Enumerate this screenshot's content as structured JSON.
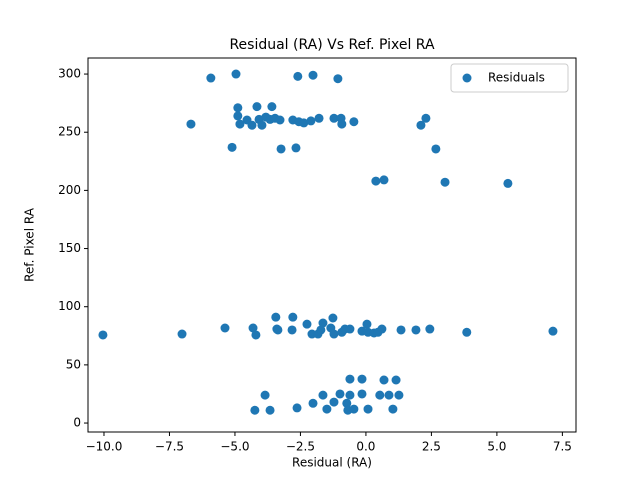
{
  "chart_data": {
    "type": "scatter",
    "title": "Residual (RA) Vs Ref. Pixel RA",
    "x_label": "Residual (RA)",
    "y_label": "Ref. Pixel RA",
    "x": [
      -5.92,
      -4.96,
      -2.6,
      -2.02,
      -1.07,
      -6.68,
      -4.89,
      -4.16,
      -3.59,
      -4.89,
      -4.54,
      -4.81,
      -4.35,
      -4.08,
      -3.97,
      -3.82,
      -3.66,
      -3.47,
      -3.28,
      -2.79,
      -2.56,
      -2.37,
      -2.1,
      -1.79,
      -1.22,
      -0.95,
      -0.92,
      -0.46,
      -5.11,
      -3.24,
      -2.67,
      2.1,
      2.29,
      2.67,
      0.38,
      0.69,
      3.02,
      5.42,
      -10.04,
      -7.02,
      -5.38,
      -4.31,
      -4.2,
      -3.44,
      -3.4,
      -3.36,
      -2.82,
      -2.79,
      -2.25,
      -2.06,
      -1.83,
      -1.72,
      -1.64,
      -1.34,
      -1.26,
      -1.22,
      -0.92,
      -0.8,
      -0.61,
      -0.15,
      0.04,
      0.08,
      0.31,
      0.46,
      0.61,
      1.34,
      1.91,
      2.44,
      3.85,
      7.14,
      -0.61,
      -0.15,
      0.69,
      1.15,
      -3.85,
      -1.64,
      -0.99,
      -0.61,
      -0.15,
      0.53,
      0.88,
      1.26,
      -1.22,
      -2.02,
      -0.73,
      -4.24,
      -3.66,
      -2.63,
      -1.49,
      -0.69,
      -0.46,
      0.08,
      1.03
    ],
    "series": [
      {
        "name": "Residuals",
        "color": "#1f77b4",
        "values": [
          296.6,
          300,
          298,
          299,
          296,
          257,
          271,
          272,
          272,
          264,
          260.5,
          257,
          256,
          261,
          256,
          263,
          261,
          262,
          260.5,
          260.5,
          259,
          258,
          259.7,
          262,
          262,
          262,
          257,
          259,
          237,
          235.6,
          236.5,
          256,
          262,
          235.6,
          208,
          209,
          207,
          206,
          75.7,
          76.5,
          81.7,
          81.7,
          75.7,
          91,
          80.8,
          80,
          80,
          91,
          85,
          76.5,
          76.5,
          80,
          86,
          81.7,
          90.3,
          76.5,
          78,
          80.8,
          80.8,
          79,
          85,
          78,
          77.4,
          78,
          80.8,
          80,
          80,
          80.8,
          78,
          79,
          37.8,
          37.8,
          37,
          37,
          24,
          24,
          25,
          24,
          25,
          24,
          24,
          24,
          18,
          17,
          17,
          11,
          11,
          13,
          12,
          11,
          12,
          12,
          12
        ]
      }
    ],
    "xlim": [
      -10.61,
      8.02
    ],
    "xticks": [
      {
        "value": -10,
        "label": "−10.0"
      },
      {
        "value": -7.5,
        "label": "−7.5"
      },
      {
        "value": -5,
        "label": "−5.0"
      },
      {
        "value": -2.5,
        "label": "−2.5"
      },
      {
        "value": 0,
        "label": "0.0"
      },
      {
        "value": 2.5,
        "label": "2.5"
      },
      {
        "value": 5,
        "label": "5.0"
      },
      {
        "value": 7.5,
        "label": "7.5"
      }
    ],
    "ylim": [
      -7.7,
      313.8
    ],
    "yticks": [
      0,
      50,
      100,
      150,
      200,
      250,
      300
    ],
    "grid": false,
    "legend": "upper right"
  }
}
